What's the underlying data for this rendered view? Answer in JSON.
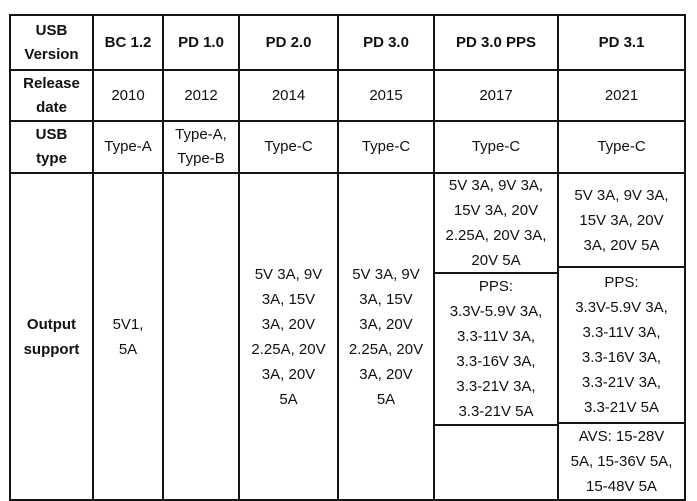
{
  "table": {
    "border_color": "#151515",
    "background_color": "#ffffff",
    "rows": {
      "version": {
        "label": "USB\nVersion",
        "values": [
          "BC 1.2",
          "PD 1.0",
          "PD 2.0",
          "PD 3.0",
          "PD 3.0 PPS",
          "PD 3.1"
        ]
      },
      "release": {
        "label": "Release\ndate",
        "values": [
          "2010",
          "2012",
          "2014",
          "2015",
          "2017",
          "2021"
        ]
      },
      "type": {
        "label": "USB\ntype",
        "values": [
          "Type-A",
          "Type-A,\nType-B",
          "Type-C",
          "Type-C",
          "Type-C",
          "Type-C"
        ]
      },
      "output": {
        "label": "Output\nsupport",
        "bc12": "5V1,\n5A",
        "pd10": "",
        "pd20": "5V 3A, 9V\n3A, 15V\n3A, 20V\n2.25A, 20V\n3A, 20V\n5A",
        "pd30": "5V 3A, 9V\n3A, 15V\n3A, 20V\n2.25A, 20V\n3A, 20V\n5A",
        "pd30pps": {
          "fixed": "5V 3A, 9V 3A,\n15V 3A, 20V\n2.25A, 20V 3A,\n20V 5A",
          "pps": "PPS:\n3.3V-5.9V 3A,\n3.3-11V 3A,\n3.3-16V 3A,\n3.3-21V 3A,\n3.3-21V 5A",
          "avs": ""
        },
        "pd31": {
          "fixed": "5V 3A, 9V 3A,\n15V 3A, 20V\n3A, 20V 5A",
          "pps": "PPS:\n3.3V-5.9V 3A,\n3.3-11V 3A,\n3.3-16V 3A,\n3.3-21V 3A,\n3.3-21V 5A",
          "avs": "AVS: 15-28V\n5A, 15-36V 5A,\n15-48V 5A"
        }
      }
    }
  }
}
